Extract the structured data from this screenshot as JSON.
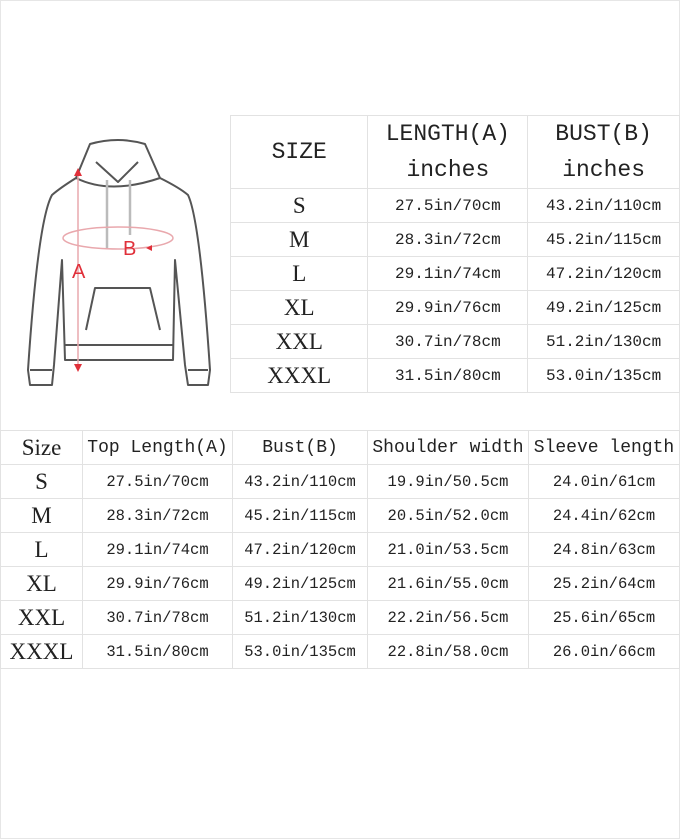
{
  "diagram": {
    "label_a": "A",
    "label_b": "B",
    "accent_color": "#e0303a"
  },
  "top_table": {
    "headers": [
      "SIZE",
      "LENGTH(A)",
      "inches",
      "BUST(B)",
      "inches"
    ],
    "rows": [
      [
        "S",
        "27.5in/70cm",
        "43.2in/110cm"
      ],
      [
        "M",
        "28.3in/72cm",
        "45.2in/115cm"
      ],
      [
        "L",
        "29.1in/74cm",
        "47.2in/120cm"
      ],
      [
        "XL",
        "29.9in/76cm",
        "49.2in/125cm"
      ],
      [
        "XXL",
        "30.7in/78cm",
        "51.2in/130cm"
      ],
      [
        "XXXL",
        "31.5in/80cm",
        "53.0in/135cm"
      ]
    ]
  },
  "bottom_table": {
    "headers": [
      "Size",
      "Top Length(A)",
      "Bust(B)",
      "Shoulder width",
      "Sleeve length"
    ],
    "rows": [
      [
        "S",
        "27.5in/70cm",
        "43.2in/110cm",
        "19.9in/50.5cm",
        "24.0in/61cm"
      ],
      [
        "M",
        "28.3in/72cm",
        "45.2in/115cm",
        "20.5in/52.0cm",
        "24.4in/62cm"
      ],
      [
        "L",
        "29.1in/74cm",
        "47.2in/120cm",
        "21.0in/53.5cm",
        "24.8in/63cm"
      ],
      [
        "XL",
        "29.9in/76cm",
        "49.2in/125cm",
        "21.6in/55.0cm",
        "25.2in/64cm"
      ],
      [
        "XXL",
        "30.7in/78cm",
        "51.2in/130cm",
        "22.2in/56.5cm",
        "25.6in/65cm"
      ],
      [
        "XXXL",
        "31.5in/80cm",
        "53.0in/135cm",
        "22.8in/58.0cm",
        "26.0in/66cm"
      ]
    ]
  }
}
